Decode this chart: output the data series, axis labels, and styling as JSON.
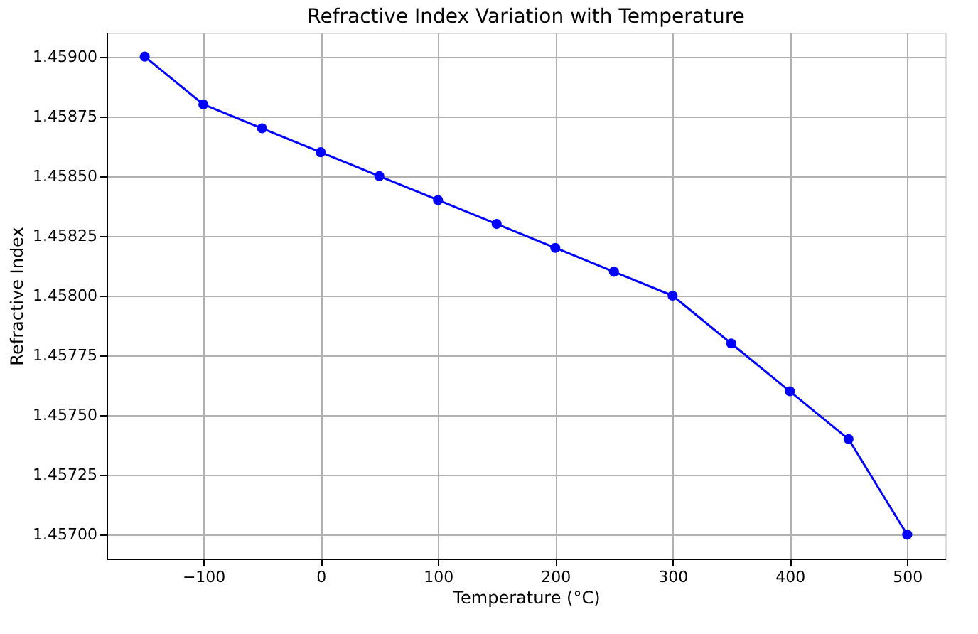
{
  "chart_data": {
    "type": "line",
    "title": "Refractive Index Variation with Temperature",
    "xlabel": "Temperature (°C)",
    "ylabel": "Refractive Index",
    "x": [
      -150,
      -100,
      -50,
      0,
      50,
      100,
      150,
      200,
      250,
      300,
      350,
      400,
      450,
      500
    ],
    "series": [
      {
        "color": "#0000ff",
        "values": [
          1.459,
          1.4588,
          1.4587,
          1.4586,
          1.4585,
          1.4584,
          1.4583,
          1.4582,
          1.4581,
          1.458,
          1.4578,
          1.4576,
          1.4574,
          1.457
        ]
      }
    ],
    "xlim": [
      -182.5,
      532.5
    ],
    "ylim": [
      1.4569,
      1.4591
    ],
    "xticks": [
      -100,
      0,
      100,
      200,
      300,
      400,
      500
    ],
    "yticks": [
      {
        "value": 1.457,
        "label": "1.45700"
      },
      {
        "value": 1.45725,
        "label": "1.45725"
      },
      {
        "value": 1.4575,
        "label": "1.45750"
      },
      {
        "value": 1.45775,
        "label": "1.45775"
      },
      {
        "value": 1.458,
        "label": "1.45800"
      },
      {
        "value": 1.45825,
        "label": "1.45825"
      },
      {
        "value": 1.4585,
        "label": "1.45850"
      },
      {
        "value": 1.45875,
        "label": "1.45875"
      },
      {
        "value": 1.459,
        "label": "1.45900"
      }
    ],
    "grid": true,
    "marker": "circle",
    "line_style": "solid"
  }
}
